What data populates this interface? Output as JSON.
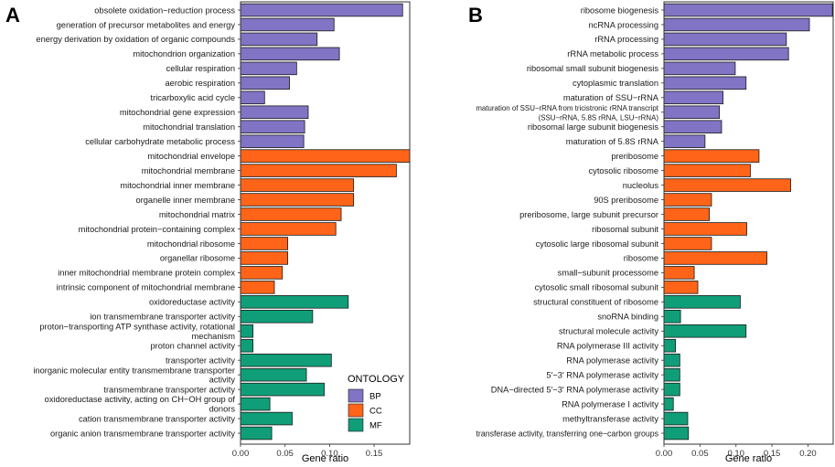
{
  "figure": {
    "legend": {
      "title": "ONTOLOGY",
      "entries": [
        {
          "label": "BP",
          "color": "#8174c4"
        },
        {
          "label": "CC",
          "color": "#ff6418"
        },
        {
          "label": "MF",
          "color": "#109e78"
        }
      ]
    }
  },
  "chart_data": [
    {
      "panel": "A",
      "type": "bar",
      "orientation": "horizontal",
      "xlabel": "Gene ratio",
      "ylabel": "",
      "xlim": [
        0,
        0.19
      ],
      "xticks": [
        "0.00",
        "0.05",
        "0.10",
        "0.15"
      ],
      "grid": false,
      "legend_position": "bottom-right",
      "bars": [
        {
          "label": "obsolete oxidation−reduction process",
          "value": 0.182,
          "ontology": "BP"
        },
        {
          "label": "generation of precursor metabolites and energy",
          "value": 0.105,
          "ontology": "BP"
        },
        {
          "label": "energy derivation by oxidation of organic compounds",
          "value": 0.086,
          "ontology": "BP"
        },
        {
          "label": "mitochondrion organization",
          "value": 0.111,
          "ontology": "BP"
        },
        {
          "label": "cellular respiration",
          "value": 0.063,
          "ontology": "BP"
        },
        {
          "label": "aerobic respiration",
          "value": 0.055,
          "ontology": "BP"
        },
        {
          "label": "tricarboxylic acid cycle",
          "value": 0.027,
          "ontology": "BP"
        },
        {
          "label": "mitochondrial gene expression",
          "value": 0.076,
          "ontology": "BP"
        },
        {
          "label": "mitochondrial translation",
          "value": 0.072,
          "ontology": "BP"
        },
        {
          "label": "cellular carbohydrate metabolic process",
          "value": 0.071,
          "ontology": "BP"
        },
        {
          "label": "mitochondrial envelope",
          "value": 0.19,
          "ontology": "CC"
        },
        {
          "label": "mitochondrial membrane",
          "value": 0.175,
          "ontology": "CC"
        },
        {
          "label": "mitochondrial inner membrane",
          "value": 0.127,
          "ontology": "CC"
        },
        {
          "label": "organelle inner membrane",
          "value": 0.127,
          "ontology": "CC"
        },
        {
          "label": "mitochondrial matrix",
          "value": 0.113,
          "ontology": "CC"
        },
        {
          "label": "mitochondrial protein−containing complex",
          "value": 0.107,
          "ontology": "CC"
        },
        {
          "label": "mitochondrial ribosome",
          "value": 0.053,
          "ontology": "CC"
        },
        {
          "label": "organellar ribosome",
          "value": 0.053,
          "ontology": "CC"
        },
        {
          "label": "inner mitochondrial membrane protein complex",
          "value": 0.047,
          "ontology": "CC"
        },
        {
          "label": "intrinsic component of mitochondrial membrane",
          "value": 0.038,
          "ontology": "CC"
        },
        {
          "label": "oxidoreductase activity",
          "value": 0.121,
          "ontology": "MF"
        },
        {
          "label": "ion transmembrane transporter activity",
          "value": 0.081,
          "ontology": "MF"
        },
        {
          "label": "proton−transporting ATP synthase activity, rotational mechanism",
          "value": 0.014,
          "ontology": "MF"
        },
        {
          "label": "proton channel activity",
          "value": 0.014,
          "ontology": "MF"
        },
        {
          "label": "transporter activity",
          "value": 0.102,
          "ontology": "MF"
        },
        {
          "label": "inorganic molecular entity transmembrane transporter activity",
          "value": 0.074,
          "ontology": "MF"
        },
        {
          "label": "transmembrane transporter activity",
          "value": 0.094,
          "ontology": "MF"
        },
        {
          "label": "oxidoreductase activity, acting on CH−OH group of donors",
          "value": 0.033,
          "ontology": "MF"
        },
        {
          "label": "cation transmembrane transporter activity",
          "value": 0.058,
          "ontology": "MF"
        },
        {
          "label": "organic anion transmembrane transporter activity",
          "value": 0.035,
          "ontology": "MF"
        }
      ]
    },
    {
      "panel": "B",
      "type": "bar",
      "orientation": "horizontal",
      "xlabel": "Gene ratio",
      "ylabel": "",
      "xlim": [
        0,
        0.235
      ],
      "xticks": [
        "0.00",
        "0.05",
        "0.10",
        "0.15",
        "0.20"
      ],
      "grid": false,
      "bars": [
        {
          "label": "ribosome biogenesis",
          "value": 0.234,
          "ontology": "BP"
        },
        {
          "label": "ncRNA processing",
          "value": 0.202,
          "ontology": "BP"
        },
        {
          "label": "rRNA processing",
          "value": 0.17,
          "ontology": "BP"
        },
        {
          "label": "rRNA metabolic process",
          "value": 0.173,
          "ontology": "BP"
        },
        {
          "label": "ribosomal small subunit biogenesis",
          "value": 0.099,
          "ontology": "BP"
        },
        {
          "label": "cytoplasmic translation",
          "value": 0.114,
          "ontology": "BP"
        },
        {
          "label": "maturation of SSU−rRNA",
          "value": 0.082,
          "ontology": "BP"
        },
        {
          "label": "maturation of SSU−rRNA from tricistronic rRNA transcript (SSU−rRNA, 5.8S rRNA, LSU−rRNA)",
          "value": 0.077,
          "ontology": "BP"
        },
        {
          "label": "ribosomal large subunit biogenesis",
          "value": 0.08,
          "ontology": "BP"
        },
        {
          "label": "maturation of 5.8S rRNA",
          "value": 0.057,
          "ontology": "BP"
        },
        {
          "label": "preribosome",
          "value": 0.132,
          "ontology": "CC"
        },
        {
          "label": "cytosolic ribosome",
          "value": 0.12,
          "ontology": "CC"
        },
        {
          "label": "nucleolus",
          "value": 0.176,
          "ontology": "CC"
        },
        {
          "label": "90S preribosome",
          "value": 0.066,
          "ontology": "CC"
        },
        {
          "label": "preribosome, large subunit precursor",
          "value": 0.063,
          "ontology": "CC"
        },
        {
          "label": "ribosomal subunit",
          "value": 0.115,
          "ontology": "CC"
        },
        {
          "label": "cytosolic large ribosomal subunit",
          "value": 0.066,
          "ontology": "CC"
        },
        {
          "label": "ribosome",
          "value": 0.143,
          "ontology": "CC"
        },
        {
          "label": "small−subunit processome",
          "value": 0.042,
          "ontology": "CC"
        },
        {
          "label": "cytosolic small ribosomal subunit",
          "value": 0.047,
          "ontology": "CC"
        },
        {
          "label": "structural constituent of ribosome",
          "value": 0.106,
          "ontology": "MF"
        },
        {
          "label": "snoRNA binding",
          "value": 0.023,
          "ontology": "MF"
        },
        {
          "label": "structural molecule activity",
          "value": 0.114,
          "ontology": "MF"
        },
        {
          "label": "RNA polymerase III activity",
          "value": 0.016,
          "ontology": "MF"
        },
        {
          "label": "RNA polymerase activity",
          "value": 0.022,
          "ontology": "MF"
        },
        {
          "label": "5′−3′ RNA polymerase activity",
          "value": 0.022,
          "ontology": "MF"
        },
        {
          "label": "DNA−directed 5′−3′ RNA polymerase activity",
          "value": 0.022,
          "ontology": "MF"
        },
        {
          "label": "RNA polymerase I activity",
          "value": 0.013,
          "ontology": "MF"
        },
        {
          "label": "methyltransferase activity",
          "value": 0.033,
          "ontology": "MF"
        },
        {
          "label": "transferase activity, transferring one−carbon groups",
          "value": 0.034,
          "ontology": "MF"
        }
      ]
    }
  ]
}
